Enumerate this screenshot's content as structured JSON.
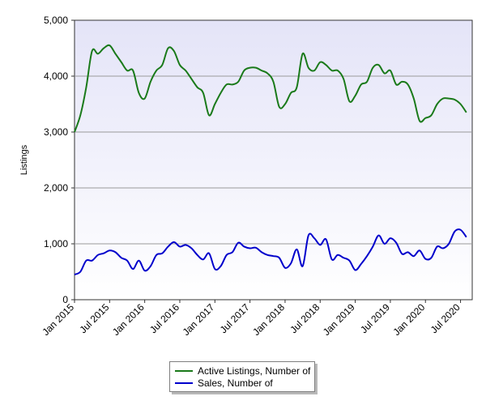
{
  "chart_data": {
    "type": "line",
    "ylabel": "Listings",
    "xlabel": "",
    "ylim": [
      0,
      5000
    ],
    "y_ticks": [
      "0",
      "1,000",
      "2,000",
      "3,000",
      "4,000",
      "5,000"
    ],
    "y_tick_values": [
      0,
      1000,
      2000,
      3000,
      4000,
      5000
    ],
    "x_ticks": [
      "Jan 2015",
      "Jul 2015",
      "Jan 2016",
      "Jul 2016",
      "Jan 2017",
      "Jul 2017",
      "Jan 2018",
      "Jul 2018",
      "Jan 2019",
      "Jul 2019",
      "Jan 2020",
      "Jul 2020"
    ],
    "x_tick_positions": [
      0,
      6,
      12,
      18,
      24,
      30,
      36,
      42,
      48,
      54,
      60,
      66
    ],
    "xlim": [
      0,
      68
    ],
    "grid": "horizontal",
    "legend_position": "bottom-center",
    "series": [
      {
        "name": "Active Listings, Number of",
        "color": "#1a7a1a",
        "values": [
          3000,
          3300,
          3800,
          4450,
          4400,
          4500,
          4550,
          4400,
          4250,
          4100,
          4100,
          3700,
          3600,
          3900,
          4100,
          4200,
          4500,
          4450,
          4200,
          4100,
          3950,
          3800,
          3700,
          3300,
          3500,
          3700,
          3850,
          3850,
          3900,
          4100,
          4150,
          4150,
          4100,
          4050,
          3900,
          3450,
          3500,
          3700,
          3800,
          4400,
          4150,
          4100,
          4250,
          4200,
          4100,
          4100,
          3950,
          3550,
          3650,
          3850,
          3900,
          4150,
          4200,
          4050,
          4100,
          3850,
          3900,
          3850,
          3600,
          3200,
          3250,
          3300,
          3500,
          3600,
          3600,
          3580,
          3500,
          3350
        ]
      },
      {
        "name": "Sales, Number of",
        "color": "#0000cc",
        "values": [
          450,
          500,
          700,
          700,
          800,
          830,
          880,
          850,
          750,
          700,
          550,
          700,
          520,
          600,
          800,
          830,
          950,
          1030,
          950,
          980,
          920,
          800,
          720,
          830,
          550,
          600,
          800,
          850,
          1020,
          950,
          920,
          930,
          850,
          800,
          780,
          750,
          570,
          650,
          900,
          600,
          1150,
          1100,
          980,
          1080,
          720,
          800,
          750,
          700,
          530,
          640,
          780,
          950,
          1150,
          1000,
          1100,
          1020,
          820,
          850,
          780,
          880,
          730,
          750,
          950,
          920,
          1000,
          1220,
          1250,
          1120
        ]
      }
    ]
  }
}
